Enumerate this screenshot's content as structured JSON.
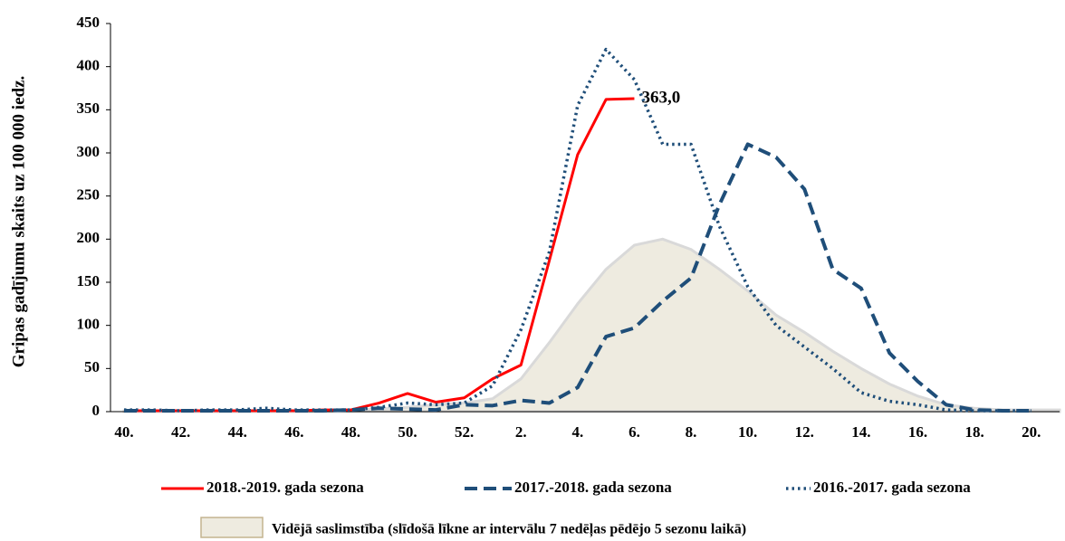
{
  "chart_data": {
    "type": "line",
    "ylabel": "Gripas gadījumu skaits uz 100 000 iedz.",
    "categories": [
      "40.",
      null,
      "42.",
      null,
      "44.",
      null,
      "46.",
      null,
      "48.",
      null,
      "50.",
      null,
      "52.",
      null,
      "2.",
      null,
      "4.",
      null,
      "6.",
      null,
      "8.",
      null,
      "10.",
      null,
      "12.",
      null,
      "14.",
      null,
      "16.",
      null,
      "18.",
      null,
      "20.",
      null
    ],
    "ylim": [
      0,
      450
    ],
    "yticks": [
      0,
      50,
      100,
      150,
      200,
      250,
      300,
      350,
      400,
      450
    ],
    "grid": false,
    "legend": "bottom",
    "series": [
      {
        "name": "2018.-2019. gada sezona",
        "color": "#ff0000",
        "dash": "solid",
        "values": [
          1,
          1,
          1,
          1,
          1,
          1,
          1,
          2,
          2,
          10,
          21,
          11,
          16,
          38,
          54,
          175,
          298,
          362,
          363,
          null,
          null,
          null,
          null,
          null,
          null,
          null,
          null,
          null,
          null,
          null,
          null,
          null,
          null,
          null
        ],
        "value_labels": [
          null,
          null,
          null,
          null,
          null,
          null,
          null,
          null,
          null,
          null,
          null,
          null,
          null,
          null,
          null,
          null,
          null,
          null,
          "363,0",
          null,
          null,
          null,
          null,
          null,
          null,
          null,
          null,
          null,
          null,
          null,
          null,
          null,
          null,
          null
        ]
      },
      {
        "name": "2017.-2018. gada sezona",
        "color": "#1f4e79",
        "dash": "dashed",
        "values": [
          1,
          1,
          1,
          1,
          1,
          1,
          1,
          1,
          2,
          4,
          3,
          2,
          8,
          7,
          13,
          10,
          28,
          87,
          97,
          128,
          155,
          240,
          310,
          295,
          258,
          165,
          143,
          68,
          35,
          8,
          2,
          1,
          1,
          null
        ]
      },
      {
        "name": "2016.-2017. gada sezona",
        "color": "#1f4e79",
        "dash": "dotted",
        "values": [
          2,
          2,
          1,
          2,
          2,
          4,
          2,
          2,
          2,
          5,
          10,
          8,
          10,
          30,
          95,
          185,
          355,
          420,
          385,
          310,
          310,
          215,
          145,
          100,
          75,
          50,
          22,
          12,
          8,
          2,
          1,
          1,
          1,
          null
        ]
      },
      {
        "name": "Vidējā saslimstība (slīdošā līkne ar intervālu 7 nedēļas pēdējo 5 sezonu laikā)",
        "color": "#eeebe0",
        "dash": "area",
        "values": [
          1,
          1,
          1,
          1,
          1,
          1,
          1,
          1,
          2,
          3,
          5,
          8,
          10,
          15,
          38,
          80,
          125,
          165,
          193,
          200,
          188,
          165,
          140,
          112,
          92,
          70,
          50,
          32,
          18,
          8,
          4,
          2,
          2,
          2
        ]
      }
    ]
  }
}
